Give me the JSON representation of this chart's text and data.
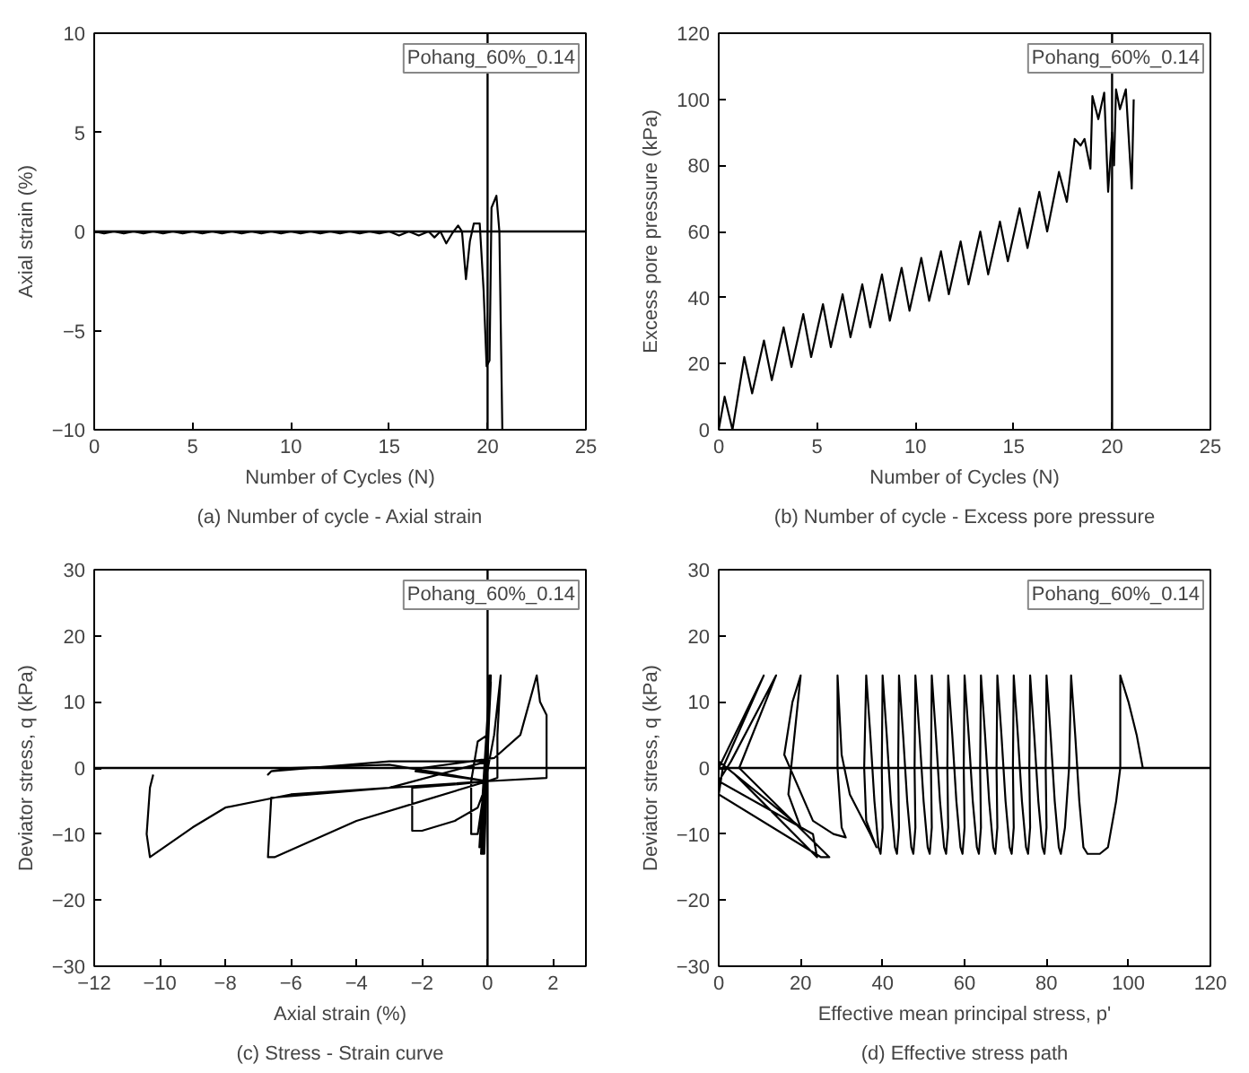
{
  "chart_data": [
    {
      "type": "line",
      "title": "(a) Number of cycle - Axial strain",
      "xlabel": "Number of Cycles (N)",
      "ylabel": "Axial strain (%)",
      "xlim": [
        0,
        25
      ],
      "ylim": [
        -10,
        10
      ],
      "xticks": [
        0,
        5,
        10,
        15,
        20,
        25
      ],
      "yticks": [
        -10,
        -5,
        0,
        5,
        10
      ],
      "grid": false,
      "annotations": [
        "Pohang_60%_0.14"
      ],
      "ref_lines": [
        {
          "axis": "x",
          "value": 20
        },
        {
          "axis": "y",
          "value": 0
        }
      ],
      "series": [
        {
          "color": "#000000",
          "x": [
            0,
            0.5,
            1,
            1.5,
            2,
            2.5,
            3,
            3.5,
            4,
            4.5,
            5,
            5.5,
            6,
            6.5,
            7,
            7.5,
            8,
            8.5,
            9,
            9.5,
            10,
            10.5,
            11,
            11.5,
            12,
            12.5,
            13,
            13.5,
            14,
            14.5,
            15,
            15.5,
            16,
            16.5,
            17,
            17.3,
            17.6,
            17.9,
            18.2,
            18.5,
            18.7,
            18.9,
            19.1,
            19.3,
            19.6,
            19.8,
            19.95,
            20.1,
            20.2,
            20.45,
            20.6,
            20.75
          ],
          "values": [
            0,
            -0.1,
            0,
            -0.1,
            0,
            -0.1,
            0,
            -0.1,
            0,
            -0.1,
            0,
            -0.1,
            0,
            -0.1,
            0,
            -0.1,
            0,
            -0.1,
            0,
            -0.1,
            0,
            -0.1,
            0,
            -0.1,
            0,
            -0.1,
            0,
            -0.1,
            0,
            -0.1,
            0,
            -0.2,
            0,
            -0.2,
            0,
            -0.3,
            0,
            -0.6,
            -0.1,
            0.3,
            0,
            -2.4,
            -0.5,
            0.4,
            0.4,
            -3,
            -6.8,
            -6.5,
            1.2,
            1.8,
            0,
            -10
          ]
        }
      ]
    },
    {
      "type": "line",
      "title": "(b) Number of cycle - Excess pore pressure",
      "xlabel": "Number of Cycles (N)",
      "ylabel": "Excess pore pressure (kPa)",
      "xlim": [
        0,
        25
      ],
      "ylim": [
        0,
        120
      ],
      "xticks": [
        0,
        5,
        10,
        15,
        20,
        25
      ],
      "yticks": [
        0,
        20,
        40,
        60,
        80,
        100,
        120
      ],
      "grid": false,
      "annotations": [
        "Pohang_60%_0.14"
      ],
      "ref_lines": [
        {
          "axis": "x",
          "value": 20
        }
      ],
      "series": [
        {
          "color": "#000000",
          "x": [
            0,
            0.3,
            0.7,
            1.3,
            1.7,
            2.3,
            2.7,
            3.3,
            3.7,
            4.3,
            4.7,
            5.3,
            5.7,
            6.3,
            6.7,
            7.3,
            7.7,
            8.3,
            8.7,
            9.3,
            9.7,
            10.3,
            10.7,
            11.3,
            11.7,
            12.3,
            12.7,
            13.3,
            13.7,
            14.3,
            14.7,
            15.3,
            15.7,
            16.3,
            16.7,
            17.3,
            17.7,
            18.1,
            18.4,
            18.6,
            18.9,
            19.0,
            19.3,
            19.6,
            19.8,
            20.0,
            20.1,
            20.2,
            20.4,
            20.7,
            21.0,
            21.1
          ],
          "values": [
            0,
            10,
            0,
            22,
            11,
            27,
            15,
            31,
            19,
            35,
            22,
            38,
            25,
            41,
            28,
            44,
            31,
            47,
            33,
            49,
            36,
            52,
            39,
            54,
            41,
            57,
            44,
            60,
            47,
            63,
            51,
            67,
            55,
            72,
            60,
            78,
            69,
            88,
            86,
            88,
            79,
            101,
            94,
            102,
            72,
            90,
            80,
            103,
            97,
            103,
            73,
            100
          ]
        }
      ]
    },
    {
      "type": "line",
      "title": "(c) Stress - Strain curve",
      "xlabel": "Axial strain (%)",
      "ylabel": "Deviator stress, q (kPa)",
      "xlim": [
        -12,
        3
      ],
      "ylim": [
        -30,
        30
      ],
      "xticks": [
        -12,
        -10,
        -8,
        -6,
        -4,
        -2,
        0,
        2
      ],
      "yticks": [
        -30,
        -20,
        -10,
        0,
        10,
        20,
        30
      ],
      "grid": false,
      "annotations": [
        "Pohang_60%_0.14"
      ],
      "ref_lines": [
        {
          "axis": "x",
          "value": 0
        },
        {
          "axis": "y",
          "value": 0
        }
      ],
      "series": [
        {
          "color": "#000000",
          "x": [
            0,
            0.05,
            -0.1,
            0.08,
            -0.12,
            0.1,
            -0.15,
            0.1,
            -0.18,
            0.08,
            -0.2,
            0.05,
            -0.25,
            0,
            -0.3,
            -0.5,
            -0.5,
            -0.3,
            -0.1,
            0.2,
            0.4,
            0.3,
            0.3,
            0,
            -1,
            -2.3,
            -2.3,
            -2,
            -1,
            -0.3,
            0,
            -2.2,
            -2,
            0.2,
            1,
            1.5,
            1.6,
            1.8,
            1.8,
            0,
            -3,
            -6.6,
            -6.7,
            -6.5,
            -4,
            -2,
            0,
            -3,
            -6,
            -6.6,
            -6.7,
            -6.6,
            -3,
            0,
            -3,
            -6,
            -8,
            -9,
            -10.3,
            -10.4,
            -10.3,
            -10.2
          ],
          "values": [
            0,
            14,
            -13,
            14,
            -13,
            14,
            -13,
            13,
            -13,
            13,
            -13,
            12,
            -12,
            5,
            4,
            -2,
            -10,
            -10,
            -3,
            5,
            14,
            5,
            -1.5,
            -2,
            -2.5,
            -3,
            -9.5,
            -9.5,
            -8,
            -6,
            -2,
            -0.5,
            0,
            1.5,
            5,
            14,
            10,
            8,
            -1.5,
            -2,
            -3,
            -4.5,
            -13.5,
            -13.5,
            -8,
            -5,
            -2,
            0.5,
            0,
            -0.5,
            -1,
            -0.5,
            1,
            1,
            -3,
            -4,
            -6,
            -9,
            -13.5,
            -10,
            -3,
            -1
          ]
        }
      ]
    },
    {
      "type": "line",
      "title": "(d) Effective stress path",
      "xlabel": "Effective mean principal stress, p'",
      "ylabel": "Deviator stress, q (kPa)",
      "xlim": [
        0,
        120
      ],
      "ylim": [
        -30,
        30
      ],
      "xticks": [
        0,
        20,
        40,
        60,
        80,
        100,
        120
      ],
      "yticks": [
        -30,
        -20,
        -10,
        0,
        10,
        20,
        30
      ],
      "grid": false,
      "annotations": [
        "Pohang_60%_0.14"
      ],
      "ref_lines": [
        {
          "axis": "y",
          "value": 0
        }
      ],
      "series": [
        {
          "color": "#000000",
          "x": [
            0,
            11,
            1,
            0,
            25,
            27,
            5,
            14,
            3,
            0,
            23,
            24,
            4,
            0,
            20,
            17,
            20,
            18,
            16,
            23,
            28,
            31,
            30,
            29,
            29,
            30,
            32,
            37,
            38.5,
            36,
            35.5,
            36,
            37,
            38,
            39,
            39.5,
            40,
            39.8,
            40,
            41,
            42,
            43,
            43.5,
            44,
            43.8,
            44,
            45,
            46,
            47,
            47.5,
            48,
            47.8,
            48,
            49,
            50,
            51,
            51.5,
            52,
            51.8,
            52,
            53,
            54,
            55,
            55.5,
            56,
            55.8,
            56,
            57,
            58,
            59,
            59.5,
            60,
            59.8,
            60,
            61,
            62,
            63,
            63.5,
            64,
            63.8,
            64,
            65,
            66,
            67,
            67.5,
            68,
            67.8,
            68,
            69,
            70,
            71,
            71.5,
            72,
            71.8,
            72,
            73,
            74,
            75,
            75.5,
            76,
            75.8,
            76,
            77,
            78,
            79,
            79.5,
            80,
            79.8,
            80,
            81,
            82,
            83,
            83.5,
            84.5,
            85.5,
            86,
            87,
            88,
            89,
            90,
            93,
            95,
            97,
            98,
            98,
            100,
            102,
            103.5
          ],
          "values": [
            0,
            14,
            0,
            -4,
            -13.5,
            -13.5,
            0,
            14,
            1,
            -2,
            -10,
            -13.5,
            -1,
            1,
            -9,
            -4,
            14,
            10,
            2,
            -8,
            -10,
            -10.5,
            -9,
            0,
            14,
            2,
            -4,
            -10,
            -12,
            -8,
            0,
            14,
            5,
            -5,
            -12,
            -13,
            -9,
            0,
            14,
            5,
            -5,
            -12,
            -13,
            -9,
            0,
            14,
            5,
            -5,
            -12,
            -13,
            -9,
            0,
            14,
            5,
            -5,
            -12,
            -13,
            -9,
            0,
            14,
            5,
            -5,
            -12,
            -13,
            -9,
            0,
            14,
            5,
            -5,
            -12,
            -13,
            -9,
            0,
            14,
            5,
            -5,
            -12,
            -13,
            -9,
            0,
            14,
            5,
            -5,
            -12,
            -13,
            -9,
            0,
            14,
            5,
            -5,
            -12,
            -13,
            -9,
            0,
            14,
            5,
            -5,
            -12,
            -13,
            -9,
            0,
            14,
            5,
            -5,
            -12,
            -13,
            -9,
            0,
            14,
            5,
            -5,
            -12,
            -13,
            -9,
            0,
            14,
            5,
            -5,
            -12,
            -13,
            -13,
            -12,
            -5,
            0,
            14,
            10,
            5,
            0
          ]
        }
      ]
    }
  ]
}
